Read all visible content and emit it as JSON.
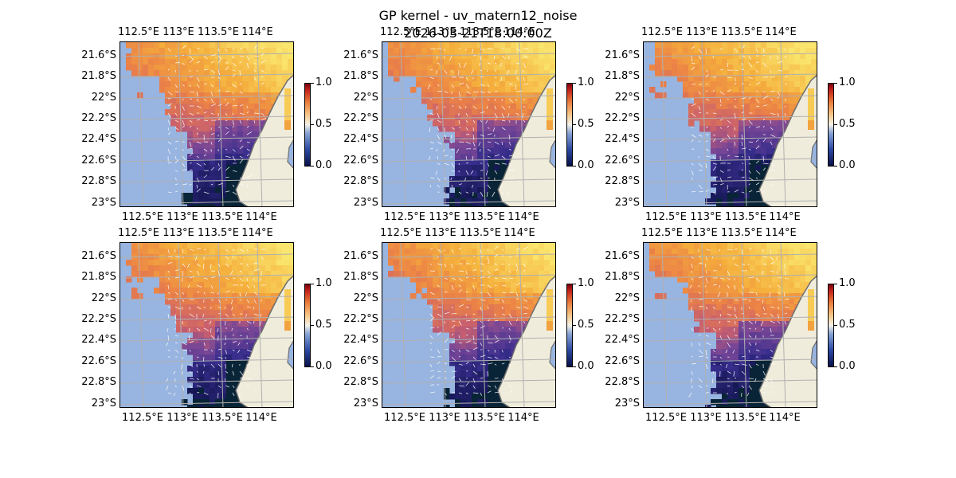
{
  "figure": {
    "title_line1": "GP kernel - uv_matern12_noise",
    "title_line2": "2026-03-21T18:00:00Z"
  },
  "axes": {
    "x_ticks_top": [
      "112.5°E",
      "113°E",
      "113.5°E",
      "114°E"
    ],
    "x_ticks_bottom": [
      "112.5°E",
      "113°E",
      "113.5°E",
      "114°E"
    ],
    "y_ticks": [
      "21.6°S",
      "21.8°S",
      "22°S",
      "22.2°S",
      "22.4°S",
      "22.6°S",
      "22.8°S",
      "23°S"
    ]
  },
  "colorbar": {
    "ticks": [
      "1.0",
      "0.5",
      "0.0"
    ],
    "range": [
      0.0,
      1.0
    ]
  },
  "colors": {
    "ocean": "#98b4e0",
    "land": "#efecdc",
    "coast": "#6e6e6e",
    "grid": "#b0b0b0",
    "vectors": "#ffffff"
  },
  "panels": [
    {
      "id": "panel-1"
    },
    {
      "id": "panel-2"
    },
    {
      "id": "panel-3"
    },
    {
      "id": "panel-4"
    },
    {
      "id": "panel-5"
    },
    {
      "id": "panel-6"
    }
  ]
}
